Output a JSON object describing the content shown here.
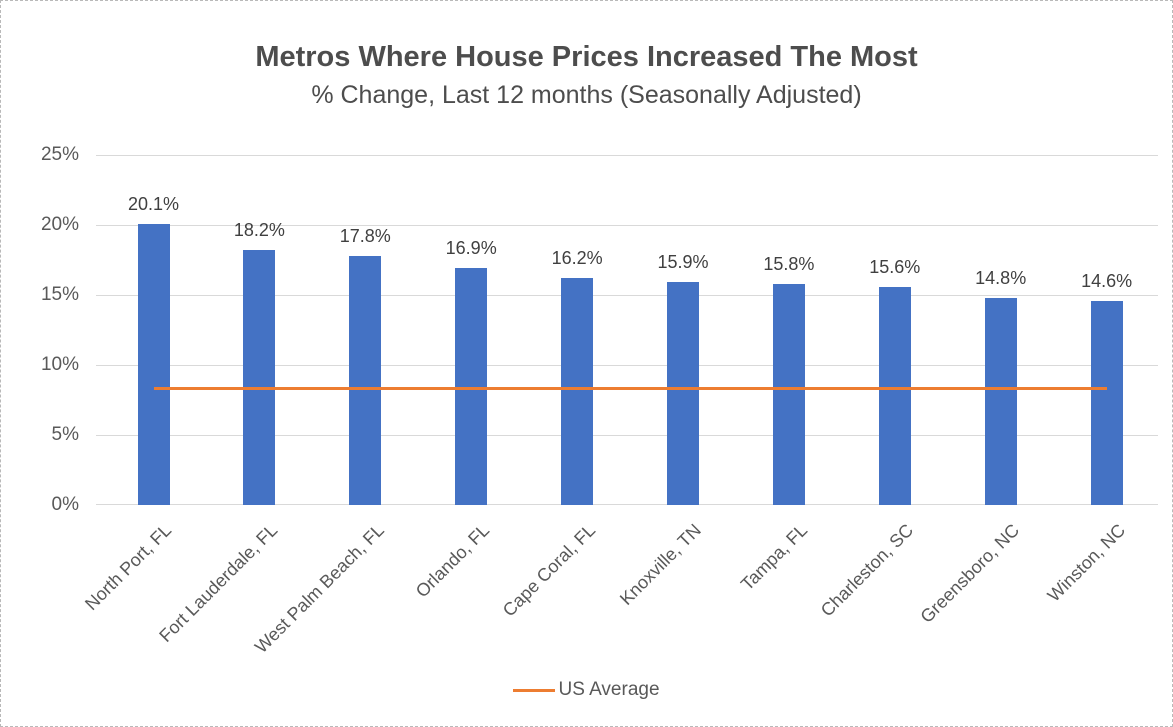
{
  "chart_data": {
    "type": "bar",
    "title": "Metros Where House Prices Increased The Most",
    "subtitle": "% Change, Last 12 months (Seasonally Adjusted)",
    "categories": [
      "North Port, FL",
      "Fort Lauderdale, FL",
      "West Palm Beach, FL",
      "Orlando, FL",
      "Cape Coral, FL",
      "Knoxville, TN",
      "Tampa, FL",
      "Charleston, SC",
      "Greensboro, NC",
      "Winston, NC"
    ],
    "values": [
      20.1,
      18.2,
      17.8,
      16.9,
      16.2,
      15.9,
      15.8,
      15.6,
      14.8,
      14.6
    ],
    "value_labels": [
      "20.1%",
      "18.2%",
      "17.8%",
      "16.9%",
      "16.2%",
      "15.9%",
      "15.8%",
      "15.6%",
      "14.8%",
      "14.6%"
    ],
    "y_axis": {
      "tick_labels": [
        "0%",
        "5%",
        "10%",
        "15%",
        "20%",
        "25%"
      ],
      "min": 0,
      "max": 25,
      "step": 5
    },
    "reference_line": {
      "label": "US Average",
      "value": 8.3
    },
    "legend": {
      "position": "bottom",
      "entries": [
        {
          "label": "US Average",
          "color": "#ed7d31",
          "marker": "line"
        }
      ]
    },
    "grid": "horizontal",
    "colors": {
      "bar": "#4472c4",
      "reference_line": "#ed7d31",
      "gridline": "#d9d9d9",
      "axis_text": "#595959",
      "title_text": "#4d4d4d",
      "value_label_text": "#404040"
    }
  }
}
